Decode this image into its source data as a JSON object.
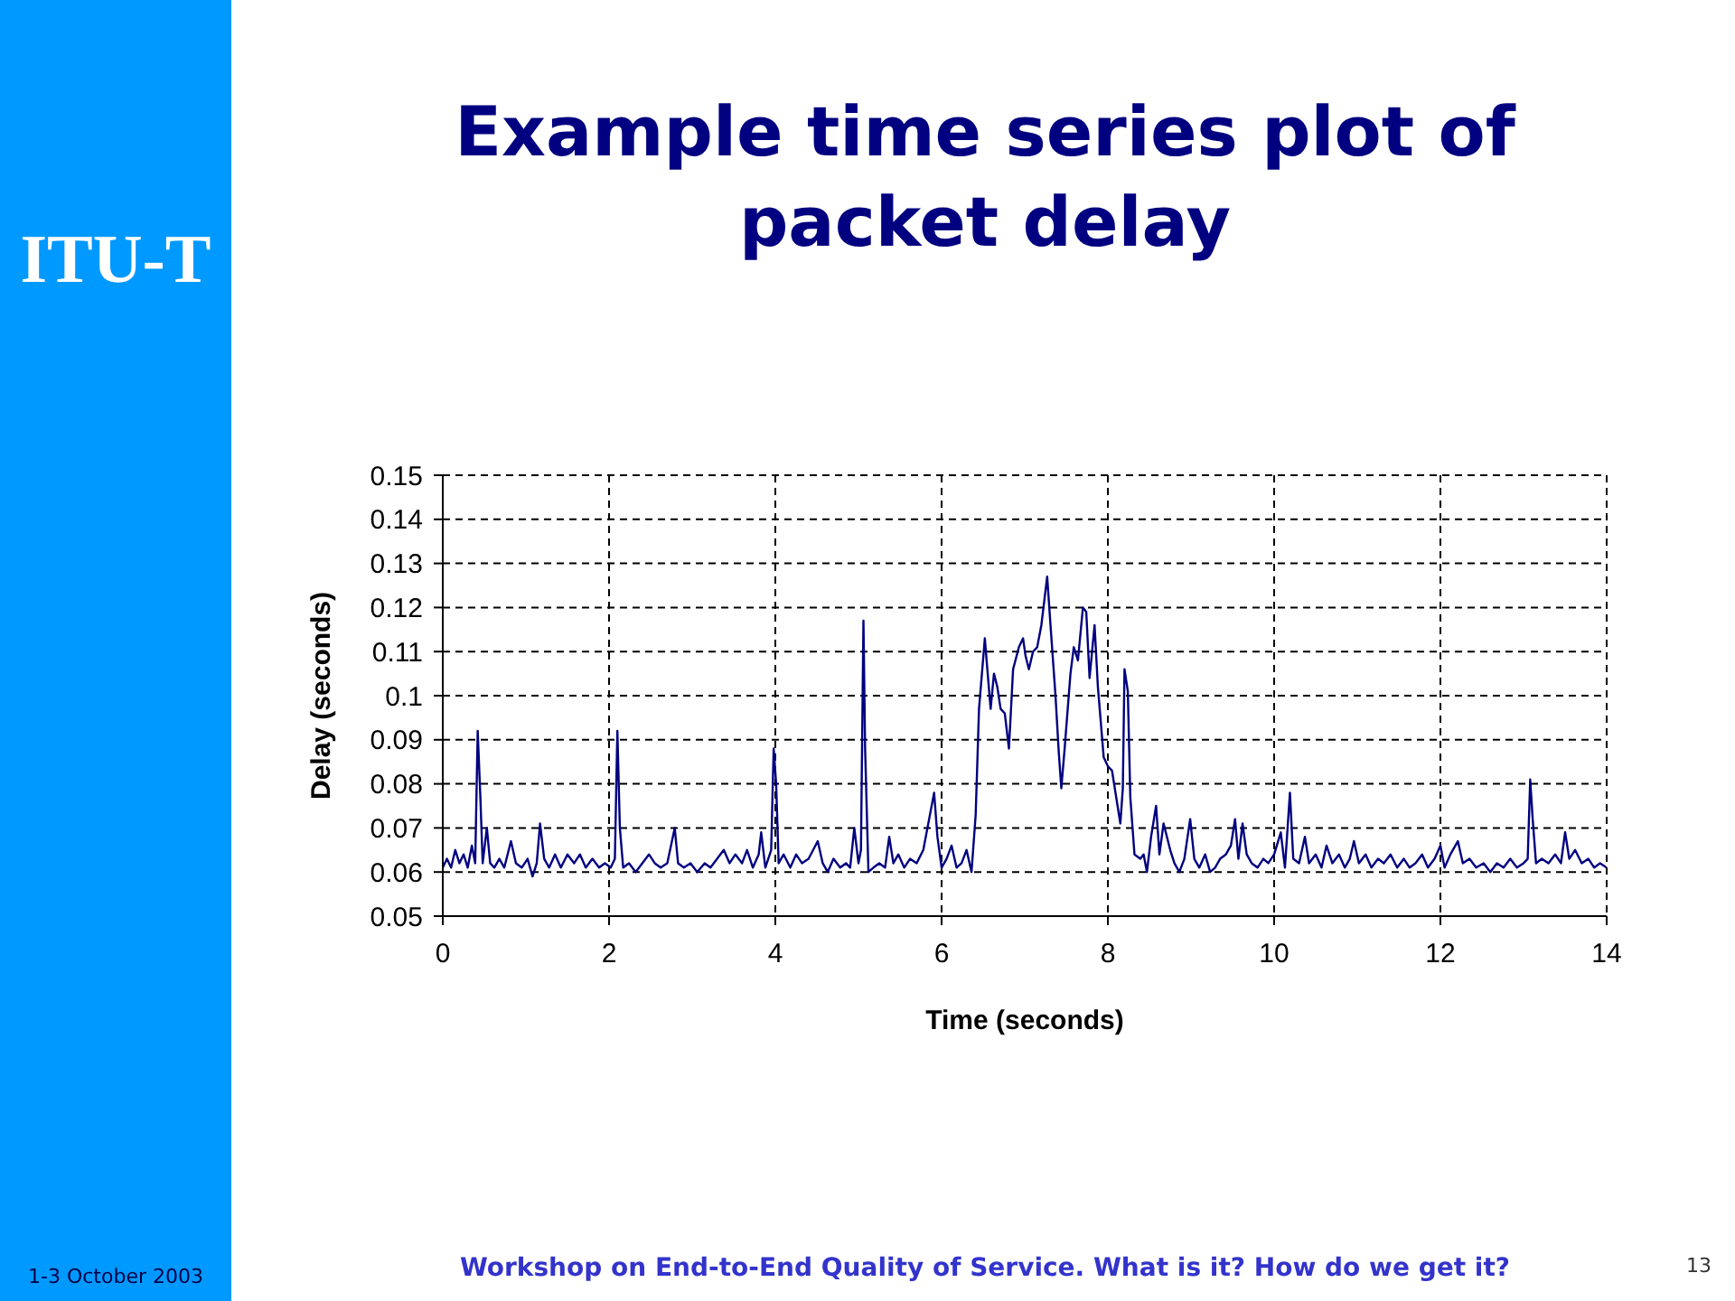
{
  "chart_data": {
    "type": "line",
    "title": "Example time series plot of packet delay",
    "xlabel": "Time (seconds)",
    "ylabel": "Delay (seconds)",
    "annotations": [
      "ITU-T",
      "1-3 October 2003",
      "Workshop on End-to-End Quality of Service. What is it? How do we get it?",
      "13"
    ],
    "x": [
      0,
      0.05,
      0.1,
      0.15,
      0.2,
      0.25,
      0.3,
      0.35,
      0.39,
      0.42,
      0.45,
      0.48,
      0.53,
      0.57,
      0.62,
      0.68,
      0.74,
      0.82,
      0.88,
      0.95,
      1.02,
      1.08,
      1.13,
      1.17,
      1.22,
      1.28,
      1.35,
      1.42,
      1.5,
      1.58,
      1.65,
      1.72,
      1.8,
      1.88,
      1.95,
      2.02,
      2.07,
      2.1,
      2.13,
      2.17,
      2.24,
      2.32,
      2.4,
      2.48,
      2.55,
      2.62,
      2.7,
      2.79,
      2.83,
      2.9,
      2.98,
      3.06,
      3.15,
      3.22,
      3.3,
      3.38,
      3.45,
      3.52,
      3.6,
      3.66,
      3.73,
      3.8,
      3.83,
      3.88,
      3.95,
      3.98,
      4.01,
      4.04,
      4.1,
      4.18,
      4.25,
      4.32,
      4.4,
      4.51,
      4.57,
      4.63,
      4.7,
      4.78,
      4.85,
      4.9,
      4.95,
      5,
      5.03,
      5.06,
      5.08,
      5.12,
      5.18,
      5.25,
      5.32,
      5.37,
      5.42,
      5.48,
      5.55,
      5.62,
      5.7,
      5.78,
      5.85,
      5.91,
      5.95,
      6,
      6.06,
      6.12,
      6.18,
      6.24,
      6.3,
      6.36,
      6.41,
      6.45,
      6.52,
      6.55,
      6.59,
      6.63,
      6.67,
      6.71,
      6.76,
      6.81,
      6.86,
      6.93,
      6.98,
      7.01,
      7.05,
      7.1,
      7.15,
      7.2,
      7.27,
      7.31,
      7.37,
      7.41,
      7.44,
      7.48,
      7.55,
      7.59,
      7.64,
      7.7,
      7.74,
      7.78,
      7.84,
      7.88,
      7.95,
      8,
      8.05,
      8.1,
      8.15,
      8.18,
      8.2,
      8.24,
      8.27,
      8.32,
      8.39,
      8.43,
      8.47,
      8.52,
      8.58,
      8.62,
      8.67,
      8.75,
      8.8,
      8.86,
      8.92,
      8.99,
      9.04,
      9.1,
      9.17,
      9.23,
      9.29,
      9.35,
      9.42,
      9.48,
      9.53,
      9.57,
      9.62,
      9.67,
      9.73,
      9.8,
      9.87,
      9.93,
      10,
      10.08,
      10.13,
      10.19,
      10.23,
      10.3,
      10.37,
      10.42,
      10.5,
      10.57,
      10.63,
      10.7,
      10.78,
      10.85,
      10.91,
      10.96,
      11.02,
      11.1,
      11.17,
      11.25,
      11.32,
      11.4,
      11.48,
      11.56,
      11.63,
      11.7,
      11.78,
      11.85,
      11.93,
      12,
      12.05,
      12.12,
      12.21,
      12.27,
      12.35,
      12.43,
      12.52,
      12.6,
      12.68,
      12.76,
      12.84,
      12.92,
      13,
      13.05,
      13.08,
      13.11,
      13.15,
      13.22,
      13.3,
      13.38,
      13.45,
      13.5,
      13.55,
      13.62,
      13.7,
      13.78,
      13.85,
      13.92,
      14
    ],
    "values": [
      0.061,
      0.063,
      0.061,
      0.065,
      0.062,
      0.064,
      0.061,
      0.066,
      0.062,
      0.092,
      0.078,
      0.062,
      0.07,
      0.062,
      0.061,
      0.063,
      0.061,
      0.067,
      0.062,
      0.061,
      0.063,
      0.059,
      0.062,
      0.071,
      0.063,
      0.061,
      0.064,
      0.061,
      0.064,
      0.062,
      0.064,
      0.061,
      0.063,
      0.061,
      0.062,
      0.061,
      0.063,
      0.092,
      0.07,
      0.061,
      0.062,
      0.06,
      0.062,
      0.064,
      0.062,
      0.061,
      0.062,
      0.07,
      0.062,
      0.061,
      0.062,
      0.06,
      0.062,
      0.061,
      0.063,
      0.065,
      0.062,
      0.064,
      0.062,
      0.065,
      0.061,
      0.064,
      0.069,
      0.061,
      0.065,
      0.088,
      0.08,
      0.062,
      0.064,
      0.061,
      0.064,
      0.062,
      0.063,
      0.067,
      0.062,
      0.06,
      0.063,
      0.061,
      0.062,
      0.061,
      0.07,
      0.062,
      0.065,
      0.117,
      0.088,
      0.06,
      0.061,
      0.062,
      0.061,
      0.068,
      0.062,
      0.064,
      0.061,
      0.063,
      0.062,
      0.065,
      0.072,
      0.078,
      0.068,
      0.061,
      0.063,
      0.066,
      0.061,
      0.062,
      0.065,
      0.06,
      0.073,
      0.097,
      0.113,
      0.106,
      0.097,
      0.105,
      0.102,
      0.097,
      0.096,
      0.088,
      0.106,
      0.111,
      0.113,
      0.109,
      0.106,
      0.11,
      0.111,
      0.116,
      0.127,
      0.116,
      0.1,
      0.087,
      0.079,
      0.088,
      0.105,
      0.111,
      0.108,
      0.12,
      0.119,
      0.104,
      0.116,
      0.102,
      0.086,
      0.084,
      0.083,
      0.077,
      0.071,
      0.079,
      0.106,
      0.101,
      0.077,
      0.064,
      0.063,
      0.064,
      0.06,
      0.068,
      0.075,
      0.064,
      0.071,
      0.065,
      0.062,
      0.06,
      0.063,
      0.072,
      0.063,
      0.061,
      0.064,
      0.06,
      0.061,
      0.063,
      0.064,
      0.066,
      0.072,
      0.063,
      0.071,
      0.064,
      0.062,
      0.061,
      0.063,
      0.062,
      0.064,
      0.069,
      0.061,
      0.078,
      0.063,
      0.062,
      0.068,
      0.062,
      0.064,
      0.061,
      0.066,
      0.062,
      0.064,
      0.061,
      0.063,
      0.067,
      0.062,
      0.064,
      0.061,
      0.063,
      0.062,
      0.064,
      0.061,
      0.063,
      0.061,
      0.062,
      0.064,
      0.061,
      0.063,
      0.066,
      0.061,
      0.064,
      0.067,
      0.062,
      0.063,
      0.061,
      0.062,
      0.06,
      0.062,
      0.061,
      0.063,
      0.061,
      0.062,
      0.063,
      0.081,
      0.072,
      0.062,
      0.063,
      0.062,
      0.064,
      0.062,
      0.069,
      0.063,
      0.065,
      0.062,
      0.063,
      0.061,
      0.062,
      0.061
    ],
    "color": "#000080",
    "xlim": [
      0,
      14
    ],
    "xticks": [
      0,
      2,
      4,
      6,
      8,
      10,
      12,
      14
    ],
    "ylim": [
      0.05,
      0.15
    ],
    "yticks": [
      0.05,
      0.06,
      0.07,
      0.08,
      0.09,
      0.1,
      0.11,
      0.12,
      0.13,
      0.14,
      0.15
    ],
    "grid": true
  }
}
